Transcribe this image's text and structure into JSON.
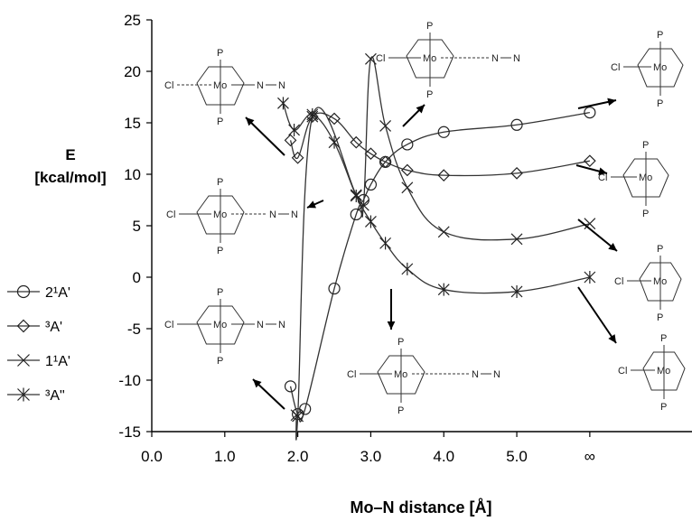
{
  "chart_data": {
    "type": "line",
    "xlabel": "Mo–N distance [Å]",
    "ylabel": [
      "E",
      "[kcal/mol]"
    ],
    "xlim": [
      0,
      7.4
    ],
    "ylim": [
      -15,
      25
    ],
    "xticks": [
      0,
      1,
      2,
      3,
      4,
      5,
      6
    ],
    "xtick_labels": [
      "0.0",
      "1.0",
      "2.0",
      "3.0",
      "4.0",
      "5.0",
      "∞"
    ],
    "yticks": [
      -15,
      -10,
      -5,
      0,
      5,
      10,
      15,
      20,
      25
    ],
    "ytick_labels": [
      "-15",
      "-10",
      "-5",
      "0",
      "5",
      "10",
      "15",
      "20",
      "25"
    ],
    "grid": false,
    "legend_position": "left",
    "series": [
      {
        "name": "2¹A'",
        "marker": "circle",
        "x": [
          1.9,
          2.0,
          2.1,
          2.5,
          2.8,
          2.9,
          3.0,
          3.2,
          3.5,
          4.0,
          5.0,
          6.0
        ],
        "y": [
          -10.6,
          -13.3,
          -12.8,
          -1.1,
          6.1,
          7.5,
          9.0,
          11.2,
          12.9,
          14.1,
          14.8,
          16.0
        ]
      },
      {
        "name": "³A'",
        "marker": "diamond",
        "x": [
          1.9,
          2.0,
          2.2,
          2.5,
          2.8,
          3.0,
          3.2,
          3.5,
          4.0,
          5.0,
          6.0
        ],
        "y": [
          13.3,
          11.6,
          15.6,
          15.4,
          13.1,
          12.0,
          11.2,
          10.4,
          9.9,
          10.1,
          11.3
        ]
      },
      {
        "name": "1¹A'",
        "marker": "x",
        "x": [
          1.98,
          2.0,
          2.2,
          2.8,
          2.9,
          3.0,
          3.2,
          3.5,
          4.0,
          5.0,
          6.0
        ],
        "y": [
          -13.4,
          -13.5,
          15.6,
          8.0,
          7.0,
          21.2,
          14.7,
          8.7,
          4.4,
          3.7,
          5.2
        ]
      },
      {
        "name": "³A\"",
        "marker": "star",
        "x": [
          1.8,
          1.95,
          2.2,
          2.5,
          2.8,
          3.0,
          3.2,
          3.5,
          4.0,
          5.0,
          6.0
        ],
        "y": [
          16.9,
          14.3,
          15.8,
          13.1,
          7.9,
          5.4,
          3.3,
          0.8,
          -1.2,
          -1.4,
          0.0
        ]
      }
    ],
    "annotations": [
      {
        "id": "s1",
        "text": [
          "P",
          "Cl",
          "Mo",
          "N",
          "N",
          "P"
        ]
      },
      {
        "id": "s2",
        "text": [
          "P",
          "Cl",
          "Mo",
          "N",
          "N",
          "P"
        ]
      },
      {
        "id": "s3",
        "text": [
          "P",
          "Cl",
          "Mo",
          "P"
        ]
      },
      {
        "id": "s4",
        "text": [
          "P",
          "Cl",
          "Mo",
          "N",
          "N",
          "P"
        ]
      },
      {
        "id": "s5",
        "text": [
          "P",
          "Cl",
          "Mo",
          "P"
        ]
      },
      {
        "id": "s6",
        "text": [
          "P",
          "Cl",
          "Mo",
          "P"
        ]
      },
      {
        "id": "s7",
        "text": [
          "P",
          "Cl",
          "Mo",
          "N",
          "N",
          "P"
        ]
      },
      {
        "id": "s8",
        "text": [
          "P",
          "Cl",
          "Mo",
          "N",
          "N",
          "P"
        ]
      },
      {
        "id": "s9",
        "text": [
          "P",
          "Cl",
          "Mo",
          "P"
        ]
      }
    ]
  }
}
